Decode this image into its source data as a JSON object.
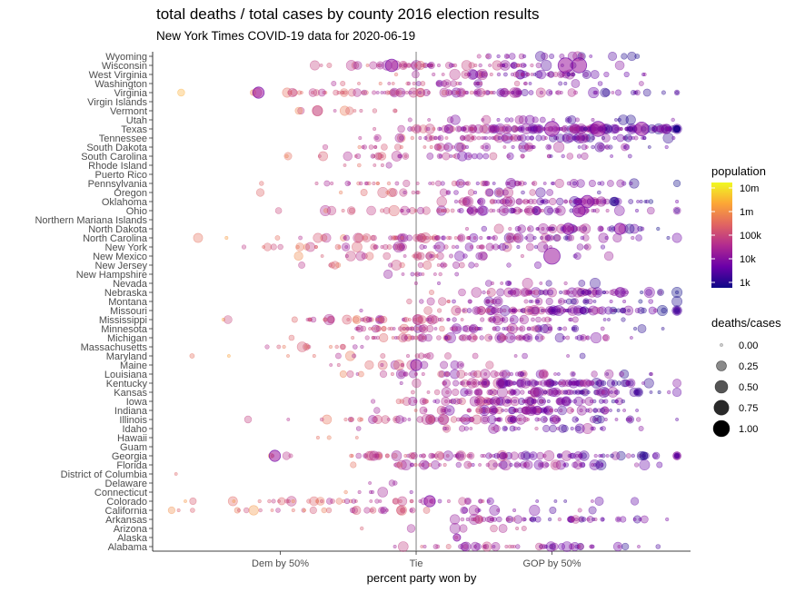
{
  "chart_data": {
    "type": "scatter",
    "title": "total deaths / total cases by county 2016 election results",
    "subtitle": "New York Times COVID-19 data for 2020-06-19",
    "xlabel": "percent party won by",
    "ylabel": "",
    "x_ticks": [
      {
        "value": -50,
        "label": "Dem by 50%"
      },
      {
        "value": 0,
        "label": "Tie"
      },
      {
        "value": 50,
        "label": "GOP by 50%"
      }
    ],
    "xlim": [
      -97,
      101
    ],
    "grid": false,
    "reference_line_x": 0,
    "categories": [
      "Alabama",
      "Alaska",
      "Arizona",
      "Arkansas",
      "California",
      "Colorado",
      "Connecticut",
      "Delaware",
      "District of Columbia",
      "Florida",
      "Georgia",
      "Guam",
      "Hawaii",
      "Idaho",
      "Illinois",
      "Indiana",
      "Iowa",
      "Kansas",
      "Kentucky",
      "Louisiana",
      "Maine",
      "Maryland",
      "Massachusetts",
      "Michigan",
      "Minnesota",
      "Mississippi",
      "Missouri",
      "Montana",
      "Nebraska",
      "Nevada",
      "New Hampshire",
      "New Jersey",
      "New Mexico",
      "New York",
      "North Carolina",
      "North Dakota",
      "Northern Mariana Islands",
      "Ohio",
      "Oklahoma",
      "Oregon",
      "Pennsylvania",
      "Puerto Rico",
      "Rhode Island",
      "South Carolina",
      "South Dakota",
      "Tennessee",
      "Texas",
      "Utah",
      "Vermont",
      "Virgin Islands",
      "Virginia",
      "Washington",
      "West Virginia",
      "Wisconsin",
      "Wyoming"
    ],
    "color_legend": {
      "title": "population",
      "labels": [
        "10m",
        "1m",
        "100k",
        "10k",
        "1k"
      ],
      "colors": [
        "#0d0887",
        "#6a00a8",
        "#b12a90",
        "#e16462",
        "#fca636",
        "#f0f921"
      ]
    },
    "size_legend": {
      "title": "deaths/cases",
      "labels": [
        "0.00",
        "0.25",
        "0.50",
        "0.75",
        "1.00"
      ]
    },
    "highlighted_points": [
      {
        "state": "Wisconsin",
        "x": 55,
        "deaths_per_cases": 0.45
      },
      {
        "state": "Wisconsin",
        "x": 60,
        "deaths_per_cases": 0.45
      },
      {
        "state": "Wisconsin",
        "x": -9,
        "deaths_per_cases": 0.35
      },
      {
        "state": "Texas",
        "x": 50,
        "deaths_per_cases": 0.45
      },
      {
        "state": "Texas",
        "x": 67,
        "deaths_per_cases": 0.45
      },
      {
        "state": "Texas",
        "x": 83,
        "deaths_per_cases": 0.4
      },
      {
        "state": "New Mexico",
        "x": 50,
        "deaths_per_cases": 0.5
      },
      {
        "state": "Ohio",
        "x": 60,
        "deaths_per_cases": 0.35
      },
      {
        "state": "Oklahoma",
        "x": 63,
        "deaths_per_cases": 0.35
      },
      {
        "state": "North Dakota",
        "x": 56,
        "deaths_per_cases": 0.3
      },
      {
        "state": "North Dakota",
        "x": 75,
        "deaths_per_cases": 0.3
      },
      {
        "state": "Virginia",
        "x": -58,
        "deaths_per_cases": 0.3
      },
      {
        "state": "Georgia",
        "x": -52,
        "deaths_per_cases": 0.3
      },
      {
        "state": "Colorado",
        "x": 5,
        "deaths_per_cases": 0.3
      },
      {
        "state": "Maine",
        "x": 0,
        "deaths_per_cases": 0.3
      },
      {
        "state": "Alaska",
        "x": 15,
        "deaths_per_cases": 0.15
      }
    ]
  }
}
